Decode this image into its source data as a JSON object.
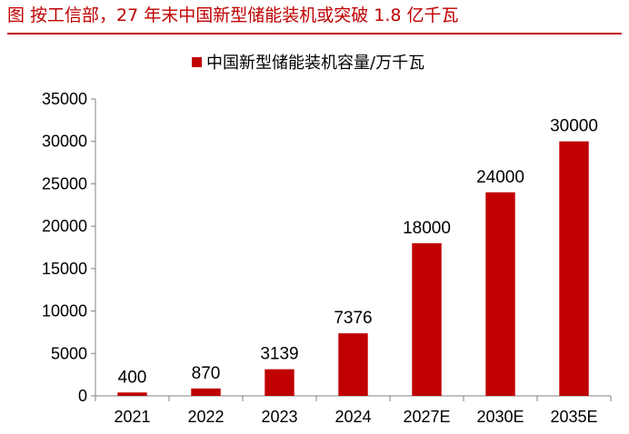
{
  "figure": {
    "title": "图 按工信部，27 年末中国新型储能装机或突破 1.8 亿千瓦",
    "accent_color": "#c00000"
  },
  "chart_data": {
    "type": "bar",
    "categories": [
      "2021",
      "2022",
      "2023",
      "2024",
      "2027E",
      "2030E",
      "2035E"
    ],
    "series": [
      {
        "name": "中国新型储能装机容量/万千瓦",
        "values": [
          400,
          870,
          3139,
          7376,
          18000,
          24000,
          30000
        ],
        "color": "#c00000"
      }
    ],
    "ylim": [
      0,
      35000
    ],
    "yticks": [
      0,
      5000,
      10000,
      15000,
      20000,
      25000,
      30000,
      35000
    ],
    "data_labels": true,
    "grid": false,
    "legend_position": "top-center"
  }
}
